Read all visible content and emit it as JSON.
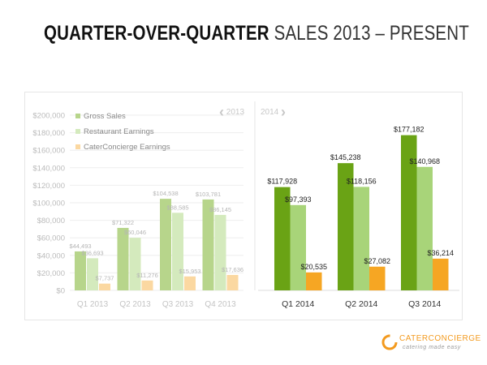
{
  "heading": {
    "bold": "QUARTER-OVER-QUARTER",
    "light": "SALES 2013 – PRESENT"
  },
  "nav": {
    "left_label": "2013",
    "right_label": "2014"
  },
  "logo": {
    "name": "CATERCONCIERGE",
    "tagline": "catering made easy"
  },
  "colors": {
    "gross": "#6aa315",
    "restaurant": "#a8d479",
    "cater": "#f6a623",
    "faded_gross": "#b7d58b",
    "faded_restaurant": "#d4eabd",
    "faded_cater": "#fbd8a1",
    "grid": "#eeeeee",
    "label": "#bbbbbb"
  },
  "chart_data": [
    {
      "type": "bar",
      "year": "2013",
      "categories": [
        "Q1 2013",
        "Q2 2013",
        "Q3 2013",
        "Q4 2013"
      ],
      "series": [
        {
          "name": "Gross Sales",
          "values": [
            44493,
            71322,
            104538,
            103781
          ],
          "labels": [
            "$44,493",
            "$71,322",
            "$104,538",
            "$103,781"
          ]
        },
        {
          "name": "Restaurant Earnings",
          "values": [
            36693,
            60046,
            88585,
            86145
          ],
          "labels": [
            "$36,693",
            "$60,046",
            "$88,585",
            "$86,145"
          ]
        },
        {
          "name": "CaterConcierge Earnings",
          "values": [
            7737,
            11276,
            15953,
            17636
          ],
          "labels": [
            "$7,737",
            "$11,276",
            "$15,953",
            "$17,636"
          ]
        }
      ],
      "ylim": [
        0,
        200000
      ],
      "yticks": [
        0,
        20000,
        40000,
        60000,
        80000,
        100000,
        120000,
        140000,
        160000,
        180000,
        200000
      ],
      "ytick_labels": [
        "$0",
        "$20,000",
        "$40,000",
        "$60,000",
        "$80,000",
        "$100,000",
        "$120,000",
        "$140,000",
        "$160,000",
        "$180,000",
        "$200,000"
      ],
      "legend": "top-left",
      "grid": true
    },
    {
      "type": "bar",
      "year": "2014",
      "categories": [
        "Q1 2014",
        "Q2 2014",
        "Q3 2014"
      ],
      "series": [
        {
          "name": "Gross Sales",
          "values": [
            117928,
            145238,
            177182
          ],
          "labels": [
            "$117,928",
            "$145,238",
            "$177,182"
          ]
        },
        {
          "name": "Restaurant Earnings",
          "values": [
            97393,
            118156,
            140968
          ],
          "labels": [
            "$97,393",
            "$118,156",
            "$140,968"
          ]
        },
        {
          "name": "CaterConcierge Earnings",
          "values": [
            20535,
            27082,
            36214
          ],
          "labels": [
            "$20,535",
            "$27,082",
            "$36,214"
          ]
        }
      ],
      "ylim": [
        0,
        200000
      ],
      "grid": false
    }
  ]
}
